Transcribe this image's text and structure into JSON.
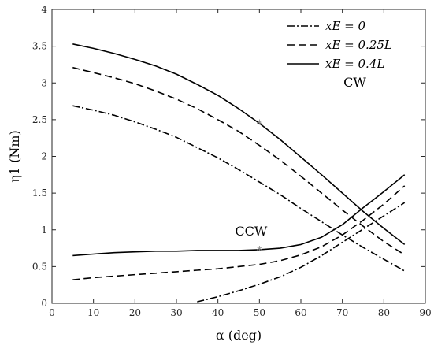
{
  "chart_data": {
    "type": "line",
    "xlabel": "α (deg)",
    "ylabel": "η1 (Nm)",
    "xlim": [
      0,
      90
    ],
    "ylim": [
      0,
      4
    ],
    "xticks": [
      0,
      10,
      20,
      30,
      40,
      50,
      60,
      70,
      80,
      90
    ],
    "yticks": [
      0,
      0.5,
      1,
      1.5,
      2,
      2.5,
      3,
      3.5,
      4
    ],
    "ytick_labels": [
      "0",
      "0.5",
      "1",
      "1.5",
      "2",
      "2.5",
      "3",
      "3.5",
      "4"
    ],
    "grid": false,
    "legend_position": "top-right",
    "legend": [
      {
        "label": "xE = 0",
        "series_key": "xE_0",
        "style": "dashdot"
      },
      {
        "label": "xE = 0.25L",
        "series_key": "xE_025L",
        "style": "dashed"
      },
      {
        "label": "xE = 0.4L",
        "series_key": "xE_04L",
        "style": "solid"
      }
    ],
    "annotations": [
      {
        "text": "CW",
        "x": 73,
        "y": 2.95
      },
      {
        "text": "CCW",
        "x": 48,
        "y": 0.92
      }
    ],
    "markers": [
      {
        "x": 50,
        "y": 2.45,
        "label": "*",
        "color": "#888888"
      },
      {
        "x": 50,
        "y": 0.73,
        "label": "*",
        "color": "#888888"
      }
    ],
    "series": [
      {
        "name": "xE = 0",
        "key": "xE_0",
        "group": "CW",
        "style": "dashdot",
        "x": [
          5,
          10,
          15,
          20,
          25,
          30,
          35,
          40,
          45,
          50,
          55,
          60,
          65,
          70,
          75,
          80,
          85
        ],
        "y": [
          2.69,
          2.63,
          2.56,
          2.47,
          2.37,
          2.26,
          2.12,
          1.98,
          1.82,
          1.65,
          1.48,
          1.29,
          1.11,
          0.93,
          0.76,
          0.6,
          0.44
        ]
      },
      {
        "name": "xE = 0.25L",
        "key": "xE_025L",
        "group": "CW",
        "style": "dashed",
        "x": [
          5,
          10,
          15,
          20,
          25,
          30,
          35,
          40,
          45,
          50,
          55,
          60,
          65,
          70,
          75,
          80,
          85
        ],
        "y": [
          3.21,
          3.14,
          3.07,
          2.99,
          2.89,
          2.78,
          2.65,
          2.5,
          2.34,
          2.15,
          1.95,
          1.73,
          1.5,
          1.27,
          1.05,
          0.84,
          0.66
        ]
      },
      {
        "name": "xE = 0.4L",
        "key": "xE_04L",
        "group": "CW",
        "style": "solid",
        "x": [
          5,
          10,
          15,
          20,
          25,
          30,
          35,
          40,
          45,
          50,
          55,
          60,
          65,
          70,
          75,
          80,
          85
        ],
        "y": [
          3.53,
          3.47,
          3.4,
          3.32,
          3.23,
          3.12,
          2.98,
          2.83,
          2.65,
          2.45,
          2.23,
          1.99,
          1.75,
          1.5,
          1.25,
          1.02,
          0.8
        ]
      },
      {
        "name": "xE = 0",
        "key": "xE_0",
        "group": "CCW",
        "style": "dashdot",
        "x": [
          35,
          40,
          45,
          50,
          55,
          60,
          65,
          70,
          75,
          80,
          85
        ],
        "y": [
          0.02,
          0.09,
          0.17,
          0.26,
          0.36,
          0.49,
          0.65,
          0.83,
          1.01,
          1.19,
          1.37
        ]
      },
      {
        "name": "xE = 0.25L",
        "key": "xE_025L",
        "group": "CCW",
        "style": "dashed",
        "x": [
          5,
          10,
          15,
          20,
          25,
          30,
          35,
          40,
          45,
          50,
          55,
          60,
          65,
          70,
          75,
          80,
          85
        ],
        "y": [
          0.32,
          0.35,
          0.37,
          0.39,
          0.41,
          0.43,
          0.45,
          0.47,
          0.5,
          0.53,
          0.58,
          0.66,
          0.77,
          0.93,
          1.13,
          1.35,
          1.6
        ]
      },
      {
        "name": "xE = 0.4L",
        "key": "xE_04L",
        "group": "CCW",
        "style": "solid",
        "x": [
          5,
          10,
          15,
          20,
          25,
          30,
          35,
          40,
          45,
          50,
          55,
          60,
          65,
          70,
          75,
          80,
          85
        ],
        "y": [
          0.65,
          0.67,
          0.69,
          0.7,
          0.71,
          0.71,
          0.72,
          0.72,
          0.72,
          0.73,
          0.75,
          0.8,
          0.9,
          1.07,
          1.3,
          1.52,
          1.75
        ]
      }
    ]
  }
}
